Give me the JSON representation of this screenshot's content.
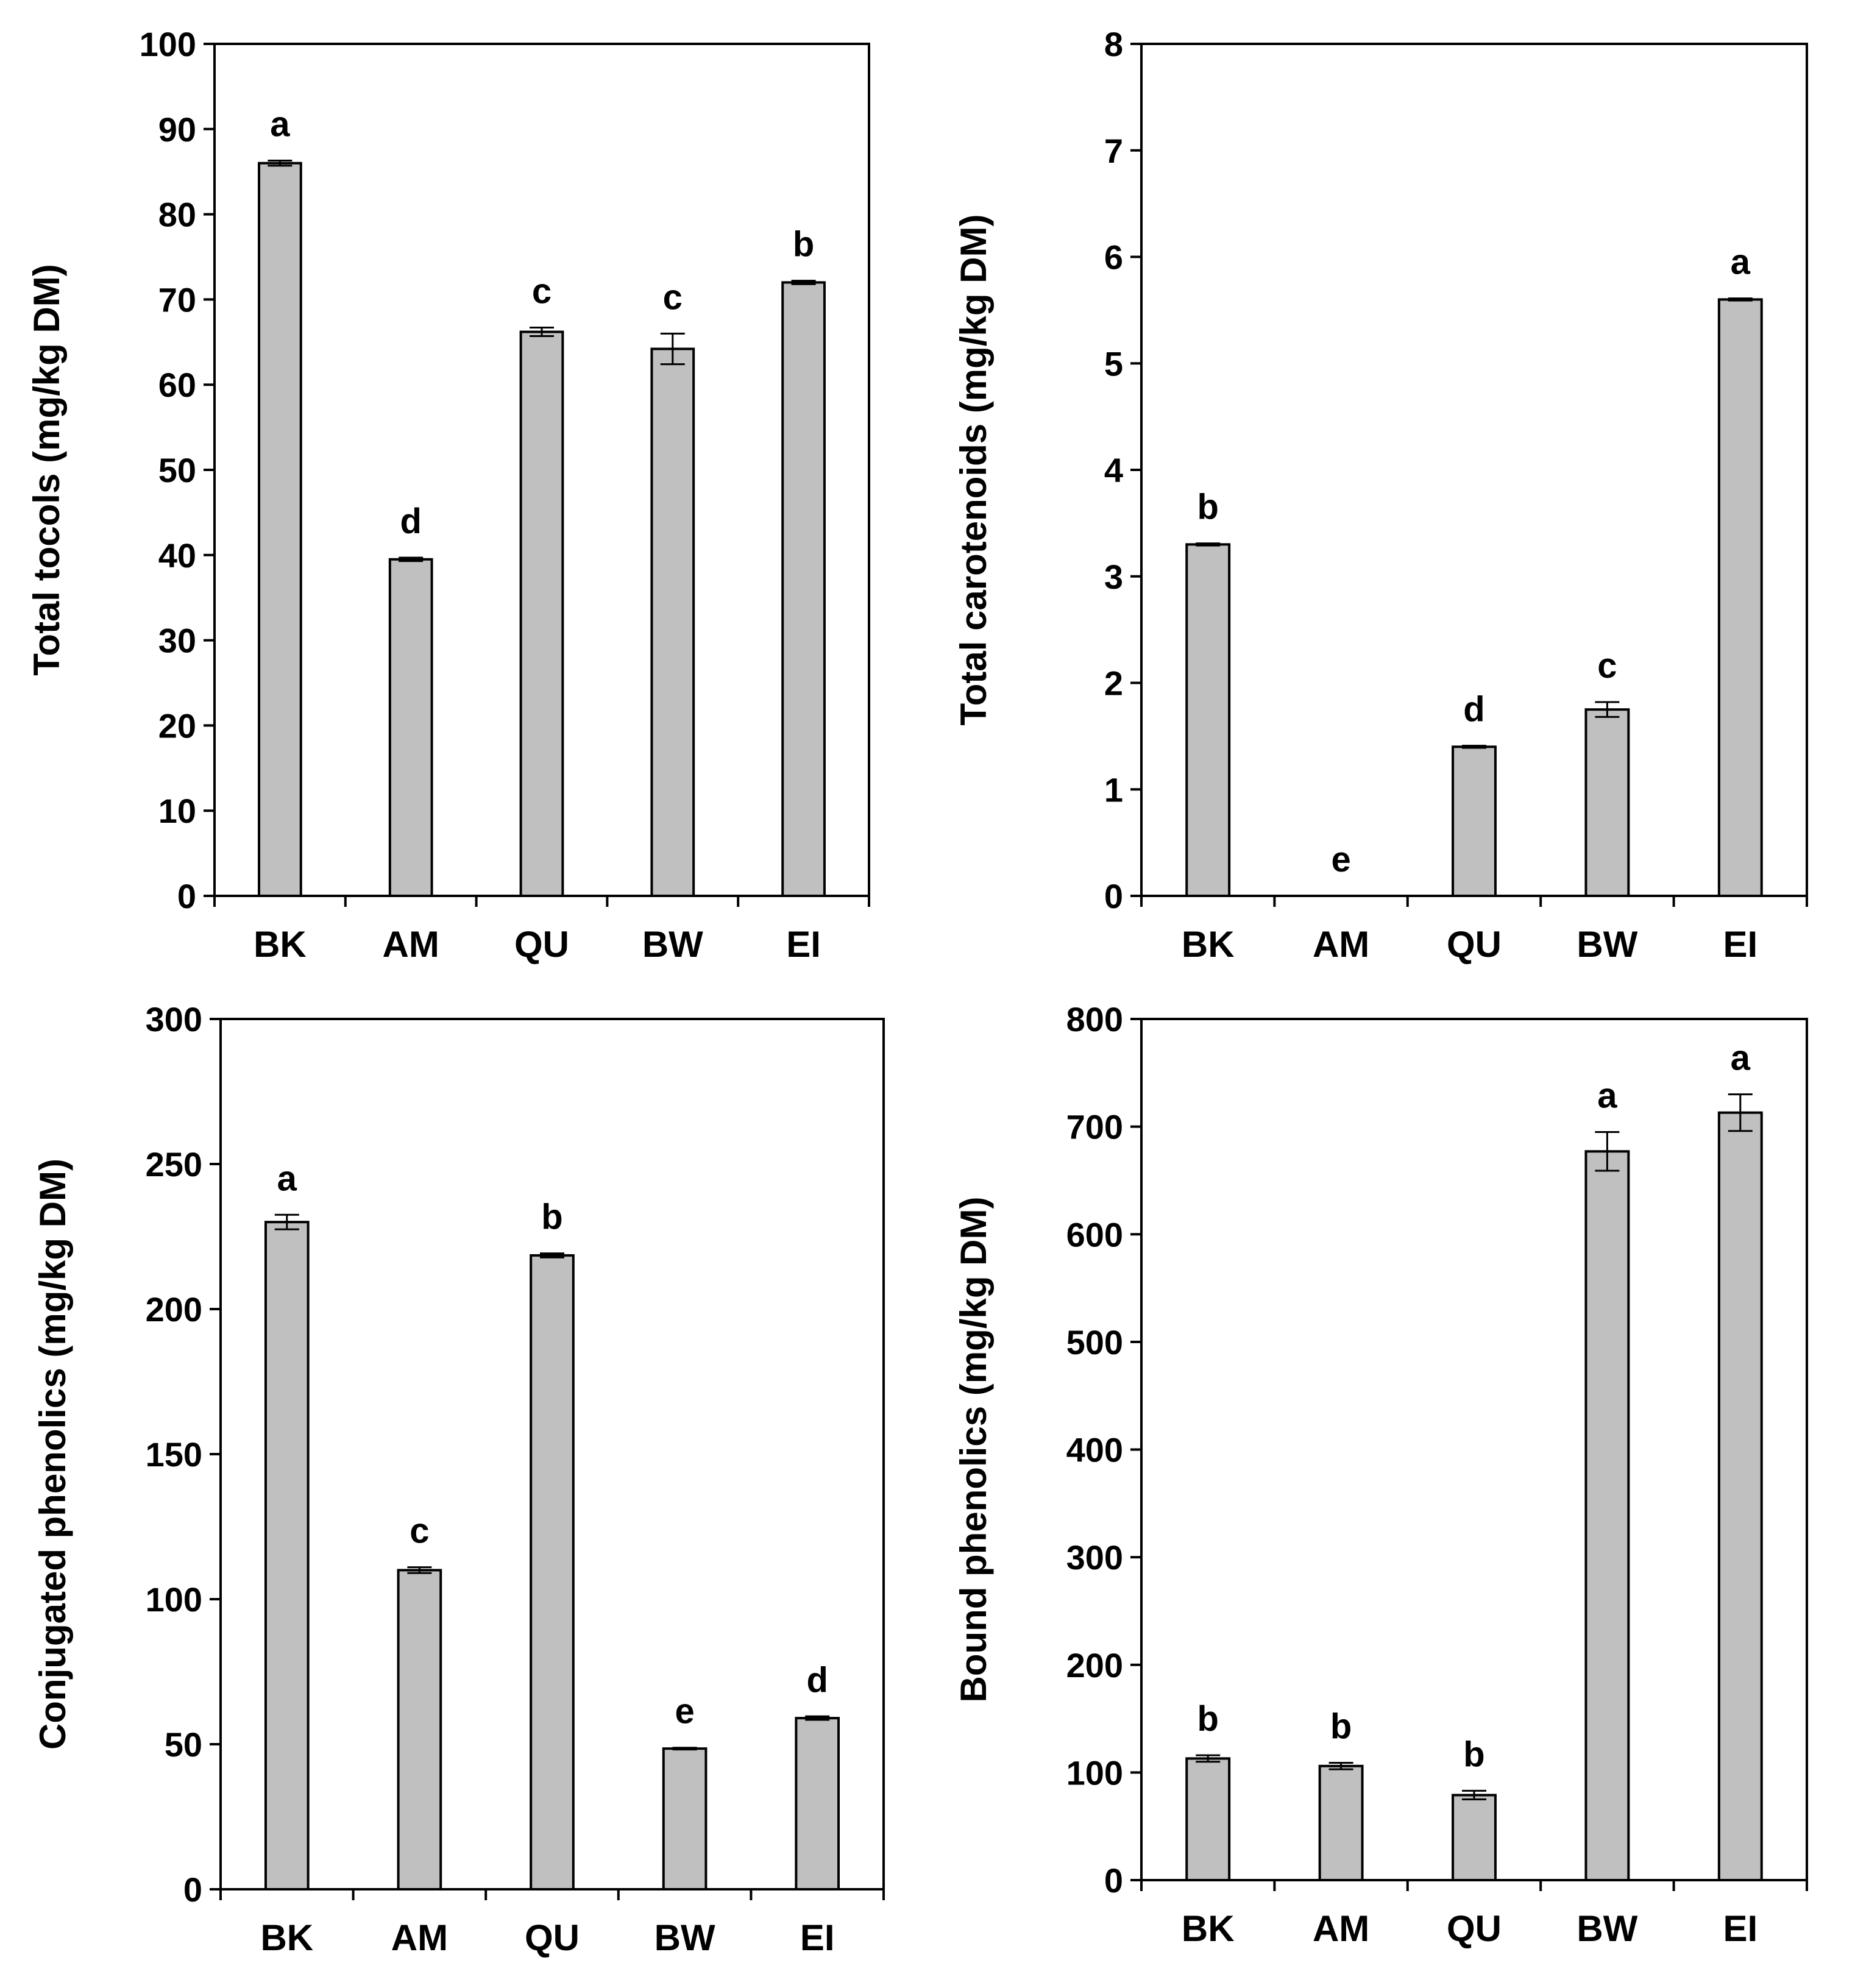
{
  "colors": {
    "bar_fill": "#c0c0c0",
    "stroke": "#000000"
  },
  "chart_data": [
    {
      "type": "bar",
      "title": "",
      "xlabel": "",
      "ylabel": "Total tocols  (mg/kg DM)",
      "ylim": [
        0,
        100
      ],
      "yticks": [
        0,
        10,
        20,
        30,
        40,
        50,
        60,
        70,
        80,
        90,
        100
      ],
      "categories": [
        "BK",
        "AM",
        "QU",
        "BW",
        "EI"
      ],
      "values": [
        86,
        39.5,
        66.2,
        64.2,
        72
      ],
      "errors": [
        0.3,
        0.2,
        0.5,
        1.8,
        0.2
      ],
      "letters": [
        "a",
        "d",
        "c",
        "c",
        "b"
      ]
    },
    {
      "type": "bar",
      "title": "",
      "xlabel": "",
      "ylabel": "Total carotenoids (mg/kg DM)",
      "ylim": [
        0,
        8
      ],
      "yticks": [
        0,
        1,
        2,
        3,
        4,
        5,
        6,
        7,
        8
      ],
      "categories": [
        "BK",
        "AM",
        "QU",
        "BW",
        "EI"
      ],
      "values": [
        3.3,
        0,
        1.4,
        1.75,
        5.6
      ],
      "errors": [
        0.01,
        0,
        0.01,
        0.07,
        0.01
      ],
      "letters": [
        "b",
        "e",
        "d",
        "c",
        "a"
      ]
    },
    {
      "type": "bar",
      "title": "",
      "xlabel": "",
      "ylabel": "Conjugated phenolics (mg/kg DM)",
      "ylim": [
        0,
        300
      ],
      "yticks": [
        0,
        50,
        100,
        150,
        200,
        250,
        300
      ],
      "categories": [
        "BK",
        "AM",
        "QU",
        "BW",
        "EI"
      ],
      "values": [
        230,
        110,
        218.5,
        48.5,
        59
      ],
      "errors": [
        2.5,
        1,
        0.7,
        0.3,
        0.6
      ],
      "letters": [
        "a",
        "c",
        "b",
        "e",
        "d"
      ]
    },
    {
      "type": "bar",
      "title": "",
      "xlabel": "",
      "ylabel": "Bound phenolics (mg/kg DM)",
      "ylim": [
        0,
        800
      ],
      "yticks": [
        0,
        100,
        200,
        300,
        400,
        500,
        600,
        700,
        800
      ],
      "categories": [
        "BK",
        "AM",
        "QU",
        "BW",
        "EI"
      ],
      "values": [
        113,
        106,
        79,
        677,
        713
      ],
      "errors": [
        3,
        3,
        4,
        18,
        17
      ],
      "letters": [
        "b",
        "b",
        "b",
        "a",
        "a"
      ]
    }
  ]
}
